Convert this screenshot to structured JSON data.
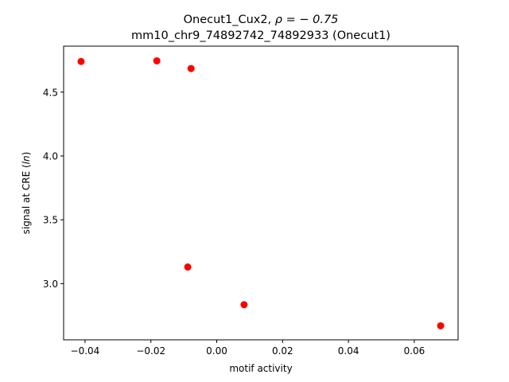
{
  "chart_data": {
    "type": "scatter",
    "title_line1_text": "Onecut1_Cux2, ",
    "title_line1_rho": "ρ = − 0.75",
    "title_line2": "mm10_chr9_74892742_74892933 (Onecut1)",
    "xlabel": "motif activity",
    "ylabel_prefix": "signal at CRE (",
    "ylabel_italic": "ln",
    "ylabel_suffix": ")",
    "xlim": [
      -0.0465,
      0.0733
    ],
    "ylim": [
      2.56,
      4.86
    ],
    "xticks": [
      -0.04,
      -0.02,
      0.0,
      0.02,
      0.04,
      0.06
    ],
    "xtick_labels": [
      "−0.04",
      "−0.02",
      "0.00",
      "0.02",
      "0.04",
      "0.06"
    ],
    "yticks": [
      3.0,
      3.5,
      4.0,
      4.5
    ],
    "ytick_labels": [
      "3.0",
      "3.5",
      "4.0",
      "4.5"
    ],
    "marker_color": "#ff0000",
    "grid": false,
    "points": [
      {
        "x": -0.0412,
        "y": 4.74
      },
      {
        "x": -0.0182,
        "y": 4.745
      },
      {
        "x": -0.0078,
        "y": 4.685
      },
      {
        "x": -0.0088,
        "y": 3.13
      },
      {
        "x": 0.0083,
        "y": 2.835
      },
      {
        "x": 0.068,
        "y": 2.67
      }
    ]
  }
}
